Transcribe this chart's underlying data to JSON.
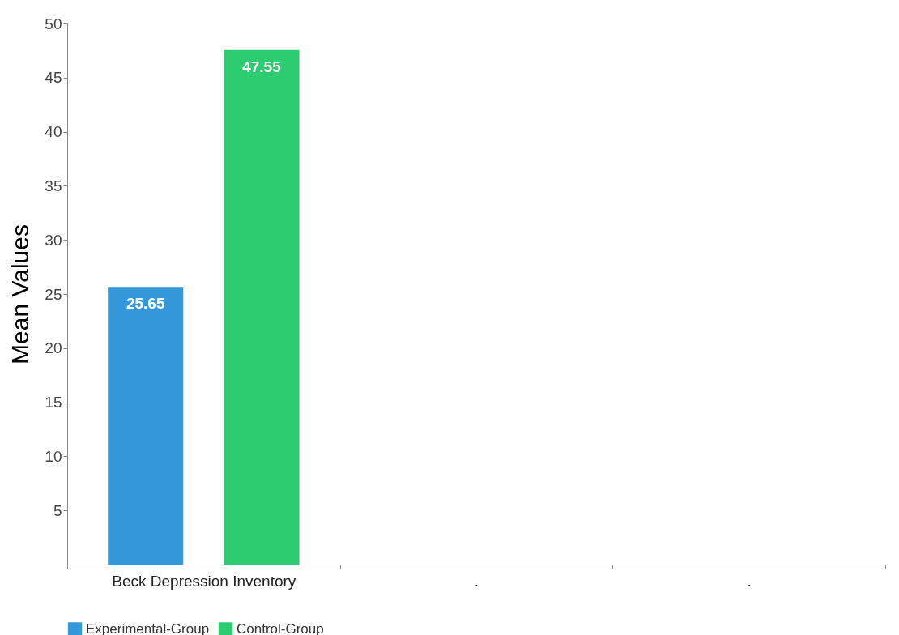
{
  "chart_data": {
    "type": "bar",
    "ylabel": "Mean Values",
    "categories": [
      "Beck Depression Inventory",
      ".",
      "."
    ],
    "series": [
      {
        "name": "Experimental-Group",
        "color": "#3498db",
        "values": [
          25.65,
          null,
          null
        ]
      },
      {
        "name": "Control-Group",
        "color": "#2ecc71",
        "values": [
          47.55,
          null,
          null
        ]
      }
    ],
    "ylim": [
      0,
      50
    ],
    "yticks": [
      5,
      10,
      15,
      20,
      25,
      30,
      35,
      40,
      45,
      50
    ],
    "grid": false,
    "legend": "bottom",
    "data_labels": true
  }
}
